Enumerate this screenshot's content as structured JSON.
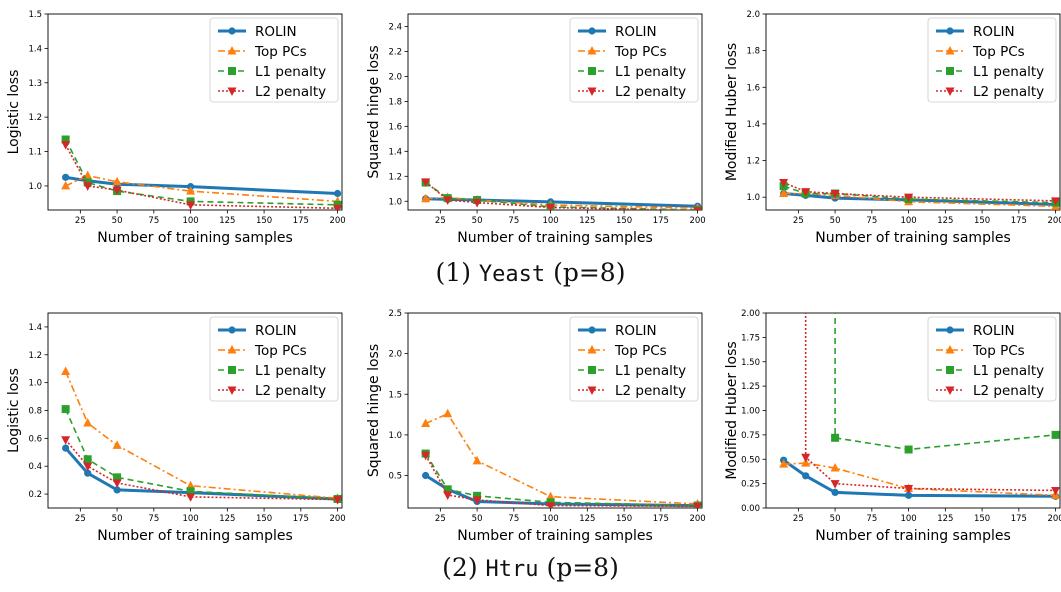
{
  "captions": [
    {
      "prefix": "(1) ",
      "dataset": "Yeast",
      "suffix": " (p=8)"
    },
    {
      "prefix": "(2) ",
      "dataset": "Htru",
      "suffix": " (p=8)"
    }
  ],
  "colors": {
    "ROLIN": "#1f77b4",
    "Top PCs": "#ff7f0e",
    "L1 penalty": "#2ca02c",
    "L2 penalty": "#d62728"
  },
  "chart_data": [
    {
      "type": "line",
      "row": 0,
      "col": 0,
      "xlabel": "Number of training samples",
      "ylabel": "Logistic loss",
      "xlim": [
        3,
        203
      ],
      "ylim": [
        0.93,
        1.5
      ],
      "xticks": [
        25,
        50,
        75,
        100,
        125,
        150,
        175,
        200
      ],
      "yticks": [
        1.0,
        1.1,
        1.2,
        1.3,
        1.4,
        1.5
      ],
      "ytick_labels": [
        "1.0",
        "1.1",
        "1.2",
        "1.3",
        "1.4",
        "1.5"
      ],
      "legend": "top-right",
      "x": [
        15,
        30,
        50,
        100,
        200
      ],
      "series": [
        {
          "name": "ROLIN",
          "values": [
            1.025,
            1.015,
            1.005,
            0.998,
            0.978
          ]
        },
        {
          "name": "Top PCs",
          "values": [
            1.0,
            1.03,
            1.012,
            0.985,
            0.955
          ]
        },
        {
          "name": "L1 penalty",
          "values": [
            1.135,
            1.01,
            0.985,
            0.955,
            0.945
          ]
        },
        {
          "name": "L2 penalty",
          "values": [
            1.12,
            1.0,
            0.988,
            0.945,
            0.935
          ]
        }
      ]
    },
    {
      "type": "line",
      "row": 0,
      "col": 1,
      "xlabel": "Number of training samples",
      "ylabel": "Squared hinge loss",
      "xlim": [
        3,
        203
      ],
      "ylim": [
        0.93,
        2.5
      ],
      "xticks": [
        25,
        50,
        75,
        100,
        125,
        150,
        175,
        200
      ],
      "yticks": [
        1.0,
        1.2,
        1.4,
        1.6,
        1.8,
        2.0,
        2.2,
        2.4
      ],
      "ytick_labels": [
        "1.0",
        "1.2",
        "1.4",
        "1.6",
        "1.8",
        "2.0",
        "2.2",
        "2.4"
      ],
      "legend": "top-right",
      "x": [
        15,
        30,
        50,
        100,
        200
      ],
      "series": [
        {
          "name": "ROLIN",
          "values": [
            1.02,
            1.015,
            1.01,
            0.995,
            0.96
          ]
        },
        {
          "name": "Top PCs",
          "values": [
            1.02,
            1.03,
            1.01,
            0.97,
            0.945
          ]
        },
        {
          "name": "L1 penalty",
          "values": [
            1.15,
            1.025,
            1.01,
            0.955,
            0.93
          ]
        },
        {
          "name": "L2 penalty",
          "values": [
            1.155,
            1.01,
            0.99,
            0.95,
            0.925
          ]
        }
      ]
    },
    {
      "type": "line",
      "row": 0,
      "col": 2,
      "xlabel": "Number of training samples",
      "ylabel": "Modified Huber loss",
      "xlim": [
        3,
        203
      ],
      "ylim": [
        0.93,
        2.0
      ],
      "xticks": [
        25,
        50,
        75,
        100,
        125,
        150,
        175,
        200
      ],
      "yticks": [
        1.0,
        1.2,
        1.4,
        1.6,
        1.8,
        2.0
      ],
      "ytick_labels": [
        "1.0",
        "1.2",
        "1.4",
        "1.6",
        "1.8",
        "2.0"
      ],
      "legend": "top-right",
      "x": [
        15,
        30,
        50,
        100,
        200
      ],
      "series": [
        {
          "name": "ROLIN",
          "values": [
            1.02,
            1.01,
            0.995,
            0.985,
            0.96
          ]
        },
        {
          "name": "Top PCs",
          "values": [
            1.02,
            1.02,
            1.01,
            0.975,
            0.95
          ]
        },
        {
          "name": "L1 penalty",
          "values": [
            1.06,
            1.02,
            1.02,
            0.99,
            0.97
          ]
        },
        {
          "name": "L2 penalty",
          "values": [
            1.08,
            1.03,
            1.02,
            1.0,
            0.98
          ]
        }
      ]
    },
    {
      "type": "line",
      "row": 1,
      "col": 0,
      "xlabel": "Number of training samples",
      "ylabel": "Logistic loss",
      "xlim": [
        3,
        203
      ],
      "ylim": [
        0.1,
        1.5
      ],
      "xticks": [
        25,
        50,
        75,
        100,
        125,
        150,
        175,
        200
      ],
      "yticks": [
        0.2,
        0.4,
        0.6,
        0.8,
        1.0,
        1.2,
        1.4
      ],
      "ytick_labels": [
        "0.2",
        "0.4",
        "0.6",
        "0.8",
        "1.0",
        "1.2",
        "1.4"
      ],
      "legend": "top-right",
      "x": [
        15,
        30,
        50,
        100,
        200
      ],
      "series": [
        {
          "name": "ROLIN",
          "values": [
            0.53,
            0.35,
            0.23,
            0.21,
            0.165
          ]
        },
        {
          "name": "Top PCs",
          "values": [
            1.08,
            0.71,
            0.55,
            0.26,
            0.17
          ]
        },
        {
          "name": "L1 penalty",
          "values": [
            0.81,
            0.45,
            0.32,
            0.22,
            0.165
          ]
        },
        {
          "name": "L2 penalty",
          "values": [
            0.59,
            0.4,
            0.28,
            0.18,
            0.16
          ]
        }
      ]
    },
    {
      "type": "line",
      "row": 1,
      "col": 1,
      "xlabel": "Number of training samples",
      "ylabel": "Squared hinge loss",
      "xlim": [
        3,
        203
      ],
      "ylim": [
        0.1,
        2.5
      ],
      "xticks": [
        25,
        50,
        75,
        100,
        125,
        150,
        175,
        200
      ],
      "yticks": [
        0.5,
        1.0,
        1.5,
        2.0,
        2.5
      ],
      "ytick_labels": [
        "0.5",
        "1.0",
        "1.5",
        "2.0",
        "2.5"
      ],
      "legend": "top-right",
      "x": [
        15,
        30,
        50,
        100,
        200
      ],
      "series": [
        {
          "name": "ROLIN",
          "values": [
            0.5,
            0.33,
            0.18,
            0.15,
            0.13
          ]
        },
        {
          "name": "Top PCs",
          "values": [
            1.14,
            1.26,
            0.68,
            0.24,
            0.15
          ]
        },
        {
          "name": "L1 penalty",
          "values": [
            0.77,
            0.33,
            0.25,
            0.17,
            0.13
          ]
        },
        {
          "name": "L2 penalty",
          "values": [
            0.75,
            0.26,
            0.2,
            0.13,
            0.12
          ]
        }
      ]
    },
    {
      "type": "line",
      "row": 1,
      "col": 2,
      "xlabel": "Number of training samples",
      "ylabel": "Modified Huber loss",
      "xlim": [
        3,
        203
      ],
      "ylim": [
        0.0,
        2.0
      ],
      "xticks": [
        25,
        50,
        75,
        100,
        125,
        150,
        175,
        200
      ],
      "yticks": [
        0.0,
        0.25,
        0.5,
        0.75,
        1.0,
        1.25,
        1.5,
        1.75,
        2.0
      ],
      "ytick_labels": [
        "0.00",
        "0.25",
        "0.50",
        "0.75",
        "1.00",
        "1.25",
        "1.50",
        "1.75",
        "2.00"
      ],
      "legend": "top-right",
      "x": [
        15,
        30,
        50,
        100,
        200
      ],
      "series": [
        {
          "name": "ROLIN",
          "values": [
            0.49,
            0.33,
            0.16,
            0.13,
            0.12
          ]
        },
        {
          "name": "Top PCs",
          "values": [
            0.45,
            0.46,
            0.41,
            0.2,
            0.13
          ]
        },
        {
          "name": "L1 penalty",
          "values": [
            null,
            null,
            0.72,
            0.6,
            0.75
          ]
        },
        {
          "name": "L2 penalty",
          "values": [
            null,
            0.52,
            0.25,
            0.2,
            0.18
          ]
        }
      ],
      "offscale_above": [
        {
          "name": "L1 penalty",
          "x": 50
        },
        {
          "name": "L2 penalty",
          "x": 30
        }
      ]
    }
  ]
}
